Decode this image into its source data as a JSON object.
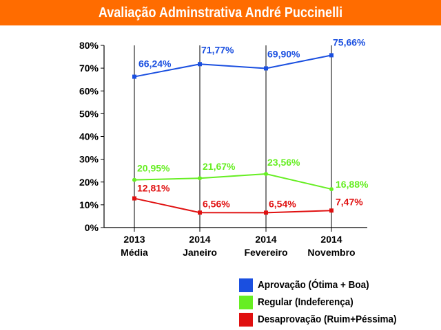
{
  "chart_data": {
    "type": "line",
    "title": "Avaliação Adminstrativa André Puccinelli",
    "categories": [
      {
        "line1": "2013",
        "line2": "Média"
      },
      {
        "line1": "2014",
        "line2": "Janeiro"
      },
      {
        "line1": "2014",
        "line2": "Fevereiro"
      },
      {
        "line1": "2014",
        "line2": "Novembro"
      }
    ],
    "ylim": [
      0,
      80
    ],
    "yticks": [
      0,
      10,
      20,
      30,
      40,
      50,
      60,
      70,
      80
    ],
    "ytick_labels": [
      "0%",
      "10%",
      "20%",
      "30%",
      "40%",
      "50%",
      "60%",
      "70%",
      "80%"
    ],
    "grid": "vertical lines at categories",
    "legend_position": "bottom-right",
    "series": [
      {
        "name": "Aprovação (Ótima + Boa)",
        "color": "#1a4fe0",
        "marker": "square",
        "values": [
          66.24,
          71.77,
          69.9,
          75.66
        ],
        "labels": [
          "66,24%",
          "71,77%",
          "69,90%",
          "75,66%"
        ]
      },
      {
        "name": "Regular (Indeferença)",
        "color": "#66ee22",
        "marker": "circle",
        "values": [
          20.95,
          21.67,
          23.56,
          16.88
        ],
        "labels": [
          "20,95%",
          "21,67%",
          "23,56%",
          "16,88%"
        ]
      },
      {
        "name": "Desaprovação (Ruim+Péssima)",
        "color": "#e01010",
        "marker": "square",
        "values": [
          12.81,
          6.56,
          6.54,
          7.47
        ],
        "labels": [
          "12,81%",
          "6,56%",
          "6,54%",
          "7,47%"
        ]
      }
    ]
  }
}
